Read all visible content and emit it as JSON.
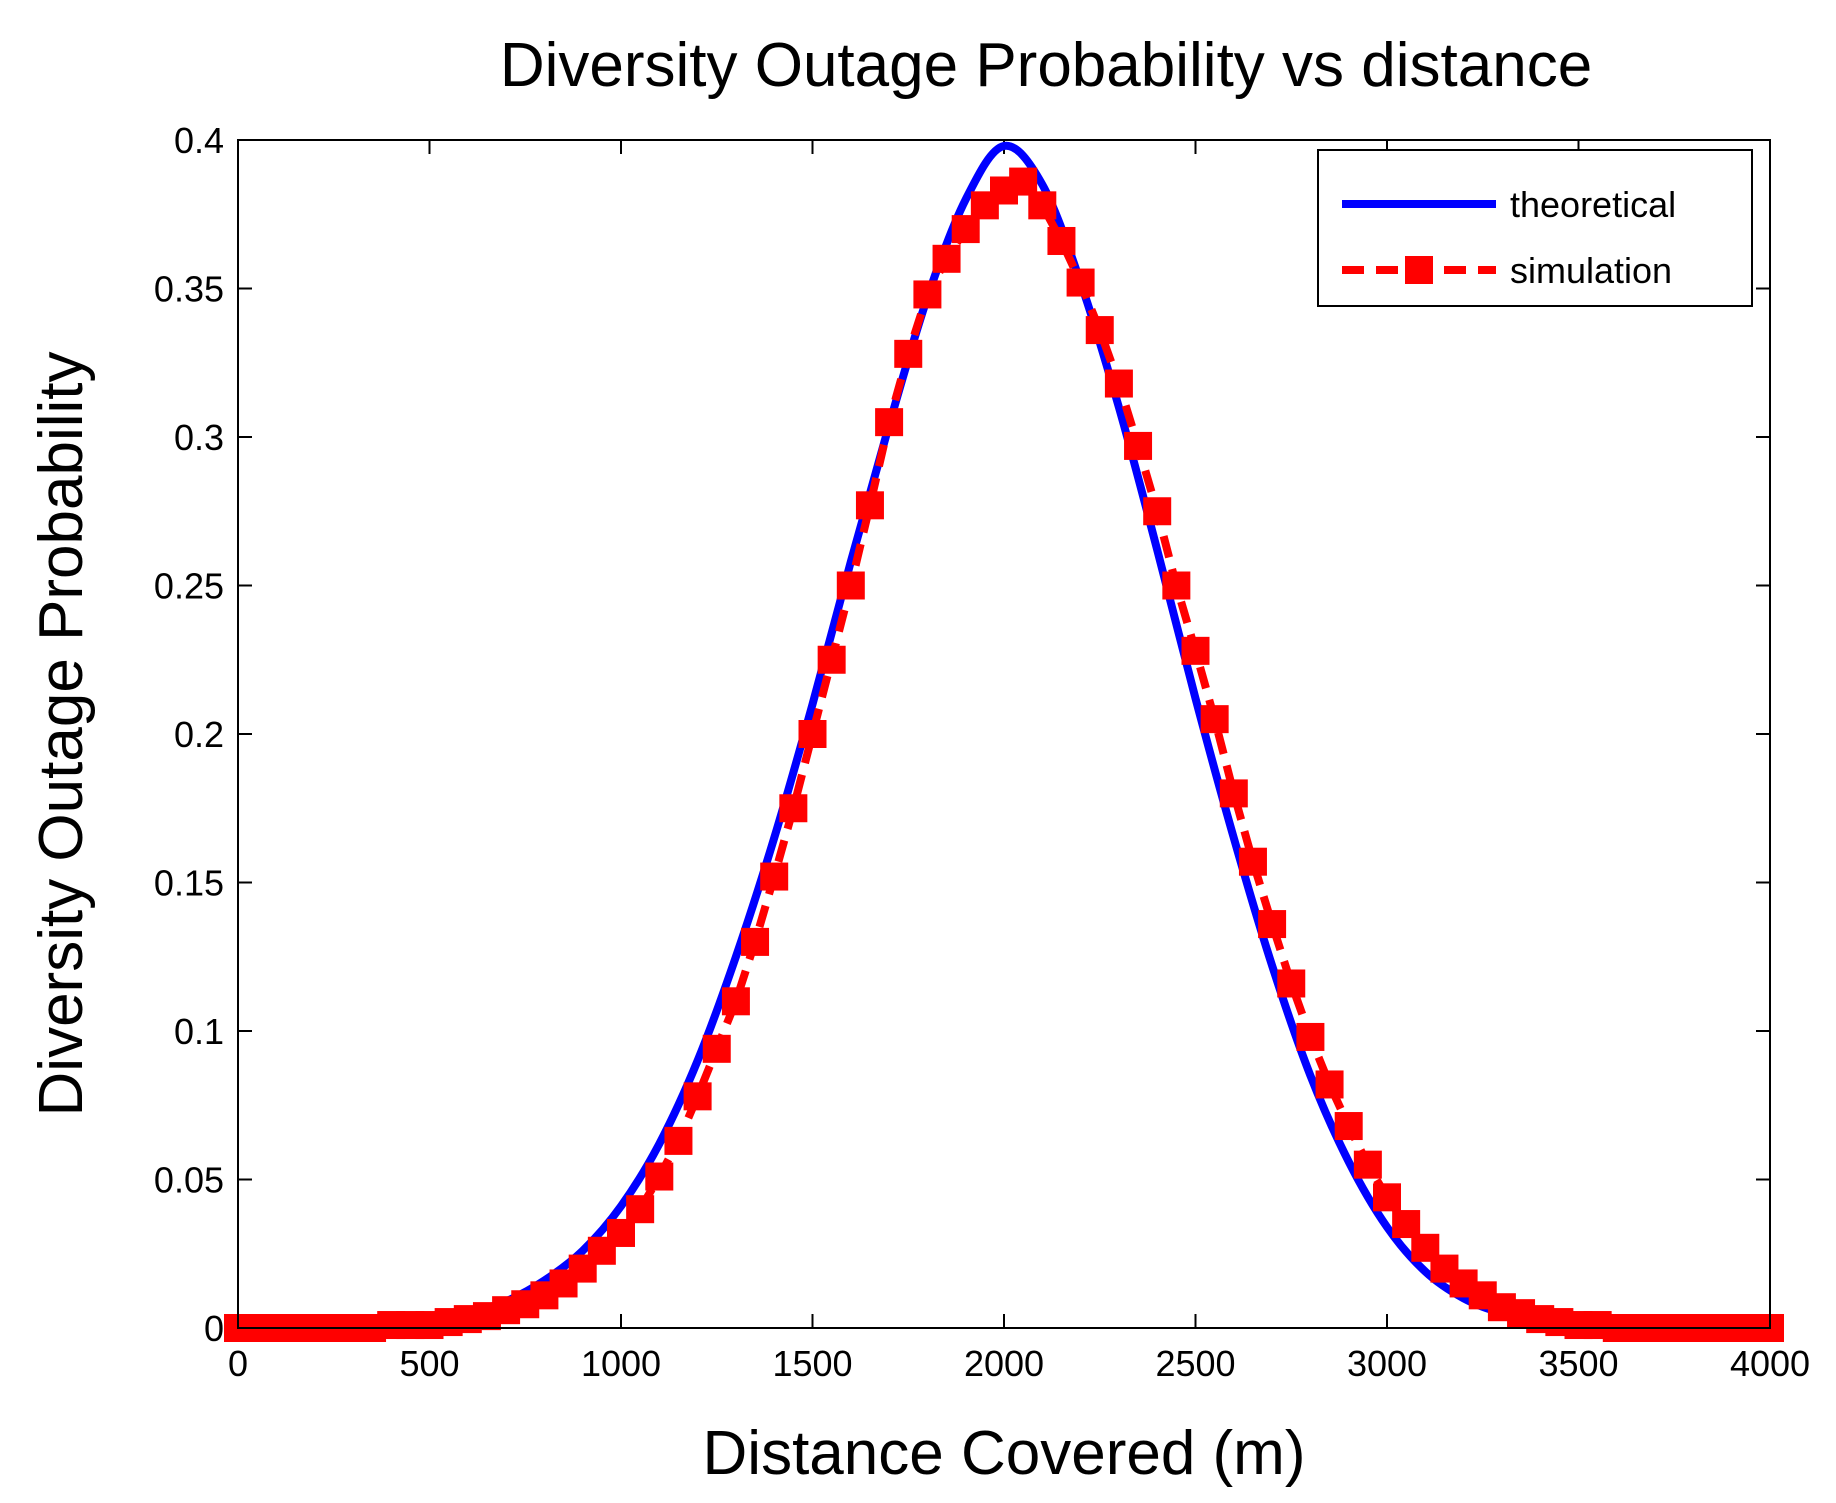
{
  "chart_data": {
    "type": "line",
    "title": "Diversity Outage Probability vs distance",
    "xlabel": "Distance Covered (m)",
    "ylabel": "Diversity Outage Probability",
    "xlim": [
      0,
      4000
    ],
    "ylim": [
      0,
      0.4
    ],
    "xticks": [
      0,
      500,
      1000,
      1500,
      2000,
      2500,
      3000,
      3500,
      4000
    ],
    "yticks": [
      0,
      0.05,
      0.1,
      0.15,
      0.2,
      0.25,
      0.3,
      0.35,
      0.4
    ],
    "xtick_labels": [
      "0",
      "500",
      "1000",
      "1500",
      "2000",
      "2500",
      "3000",
      "3500",
      "4000"
    ],
    "ytick_labels": [
      "0",
      "0.05",
      "0.1",
      "0.15",
      "0.2",
      "0.25",
      "0.3",
      "0.35",
      "0.4"
    ],
    "grid": false,
    "legend_position": "top-right",
    "colors": {
      "theoretical": "#0000ff",
      "simulation": "#ff0000"
    },
    "series": [
      {
        "name": "theoretical",
        "style": "solid",
        "x": [
          0,
          200,
          400,
          500,
          600,
          700,
          800,
          900,
          1000,
          1100,
          1200,
          1300,
          1400,
          1500,
          1600,
          1700,
          1800,
          1900,
          2000,
          2100,
          2200,
          2300,
          2400,
          2500,
          2600,
          2700,
          2800,
          2900,
          3000,
          3100,
          3200,
          3300,
          3400,
          3500,
          3600,
          3800,
          4000
        ],
        "y": [
          0,
          0,
          0.001,
          0.002,
          0.005,
          0.009,
          0.016,
          0.026,
          0.041,
          0.062,
          0.09,
          0.125,
          0.165,
          0.21,
          0.258,
          0.304,
          0.347,
          0.38,
          0.398,
          0.385,
          0.352,
          0.31,
          0.262,
          0.212,
          0.165,
          0.122,
          0.085,
          0.056,
          0.034,
          0.019,
          0.01,
          0.005,
          0.002,
          0.001,
          0,
          0,
          0
        ]
      },
      {
        "name": "simulation",
        "style": "dashed-square",
        "x": [
          0,
          50,
          100,
          150,
          200,
          250,
          300,
          350,
          400,
          450,
          500,
          550,
          600,
          650,
          700,
          750,
          800,
          850,
          900,
          950,
          1000,
          1050,
          1100,
          1150,
          1200,
          1250,
          1300,
          1350,
          1400,
          1450,
          1500,
          1550,
          1600,
          1650,
          1700,
          1750,
          1800,
          1850,
          1900,
          1950,
          2000,
          2050,
          2100,
          2150,
          2200,
          2250,
          2300,
          2350,
          2400,
          2450,
          2500,
          2550,
          2600,
          2650,
          2700,
          2750,
          2800,
          2850,
          2900,
          2950,
          3000,
          3050,
          3100,
          3150,
          3200,
          3250,
          3300,
          3350,
          3400,
          3450,
          3500,
          3550,
          3600,
          3650,
          3700,
          3750,
          3800,
          3850,
          3900,
          3950,
          4000
        ],
        "y": [
          0,
          0,
          0,
          0,
          0,
          0,
          0,
          0,
          0.001,
          0.001,
          0.001,
          0.002,
          0.003,
          0.004,
          0.006,
          0.008,
          0.011,
          0.015,
          0.02,
          0.026,
          0.032,
          0.04,
          0.051,
          0.063,
          0.078,
          0.094,
          0.11,
          0.13,
          0.152,
          0.175,
          0.2,
          0.225,
          0.25,
          0.277,
          0.305,
          0.328,
          0.348,
          0.36,
          0.37,
          0.378,
          0.383,
          0.386,
          0.378,
          0.366,
          0.352,
          0.336,
          0.318,
          0.297,
          0.275,
          0.25,
          0.228,
          0.205,
          0.18,
          0.157,
          0.136,
          0.116,
          0.098,
          0.082,
          0.068,
          0.055,
          0.044,
          0.035,
          0.027,
          0.02,
          0.015,
          0.011,
          0.007,
          0.005,
          0.003,
          0.002,
          0.001,
          0.001,
          0,
          0,
          0,
          0,
          0,
          0,
          0,
          0,
          0
        ]
      }
    ]
  }
}
